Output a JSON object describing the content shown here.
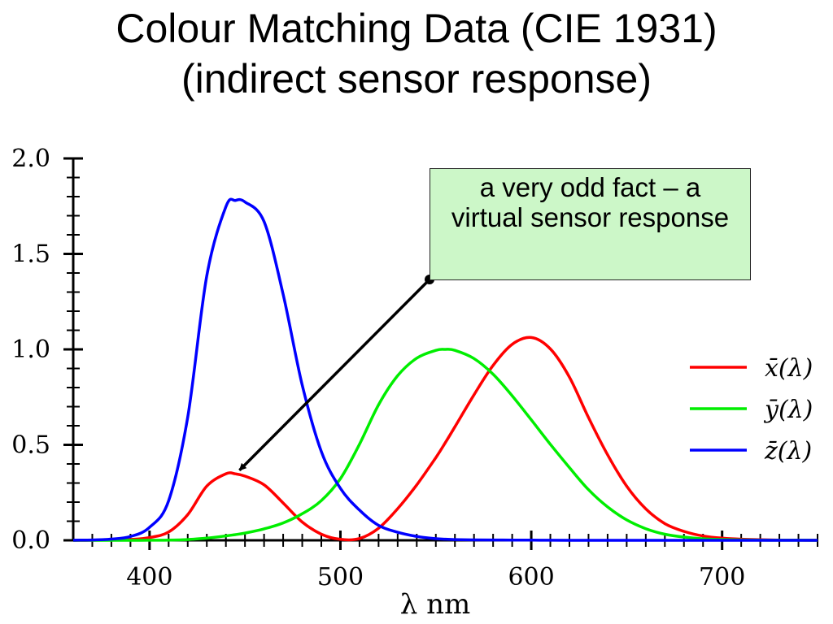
{
  "title": {
    "line1": "Colour Matching Data (CIE 1931)",
    "line2": "(indirect sensor response)"
  },
  "annotation": {
    "text": "a very odd fact – a virtual sensor response",
    "points_to": {
      "x": 445,
      "y": 0.35
    }
  },
  "chart_data": {
    "type": "line",
    "title": "Colour Matching Data (CIE 1931) (indirect sensor response)",
    "xlabel": "λ  nm",
    "ylabel": "",
    "xlim": [
      360,
      750
    ],
    "ylim": [
      0,
      2.0
    ],
    "xticks": [
      400,
      500,
      600,
      700
    ],
    "xtick_labels": [
      "400",
      "500",
      "600",
      "700"
    ],
    "yticks": [
      0.0,
      0.5,
      1.0,
      1.5,
      2.0
    ],
    "ytick_labels": [
      "0.0",
      "0.5",
      "1.0",
      "1.5",
      "2.0"
    ],
    "grid": false,
    "legend_position": "right",
    "x": [
      360,
      370,
      380,
      390,
      400,
      410,
      420,
      430,
      440,
      445,
      450,
      460,
      470,
      480,
      490,
      500,
      510,
      520,
      530,
      540,
      550,
      555,
      560,
      570,
      580,
      590,
      600,
      610,
      620,
      630,
      640,
      650,
      660,
      670,
      680,
      690,
      700,
      710,
      720,
      730,
      740,
      750
    ],
    "series": [
      {
        "name": "x̄(λ)",
        "color": "#ff0000",
        "values": [
          0.0001,
          0.0004,
          0.0014,
          0.0042,
          0.0143,
          0.0435,
          0.1344,
          0.2839,
          0.3483,
          0.348,
          0.3362,
          0.2908,
          0.1954,
          0.0956,
          0.032,
          0.0049,
          0.0093,
          0.0633,
          0.1655,
          0.2904,
          0.4334,
          0.512,
          0.5945,
          0.7621,
          0.9163,
          1.0263,
          1.0622,
          1.0026,
          0.8544,
          0.6424,
          0.4479,
          0.2835,
          0.1649,
          0.0874,
          0.0468,
          0.0227,
          0.0114,
          0.0058,
          0.0029,
          0.0014,
          0.0007,
          0.0003
        ]
      },
      {
        "name": "ȳ(λ)",
        "color": "#00ee00",
        "values": [
          0.0,
          0.0,
          0.0,
          0.0001,
          0.0004,
          0.0012,
          0.004,
          0.0116,
          0.023,
          0.03,
          0.038,
          0.06,
          0.091,
          0.139,
          0.208,
          0.323,
          0.503,
          0.71,
          0.862,
          0.954,
          0.995,
          1.0,
          0.995,
          0.952,
          0.87,
          0.757,
          0.631,
          0.503,
          0.381,
          0.265,
          0.175,
          0.107,
          0.061,
          0.032,
          0.017,
          0.0082,
          0.0041,
          0.0021,
          0.001,
          0.0005,
          0.0003,
          0.0001
        ]
      },
      {
        "name": "z̄(λ)",
        "color": "#0000ff",
        "values": [
          0.0006,
          0.0019,
          0.0065,
          0.0201,
          0.0679,
          0.2074,
          0.6456,
          1.3856,
          1.7471,
          1.78,
          1.7721,
          1.6692,
          1.2876,
          0.813,
          0.4652,
          0.272,
          0.1582,
          0.0782,
          0.0422,
          0.0203,
          0.0087,
          0.0058,
          0.0039,
          0.0021,
          0.0017,
          0.0011,
          0.0008,
          0.0003,
          0.0002,
          0.0,
          0.0,
          0.0,
          0.0,
          0.0,
          0.0,
          0.0,
          0.0,
          0.0,
          0.0,
          0.0,
          0.0,
          0.0
        ]
      }
    ]
  }
}
